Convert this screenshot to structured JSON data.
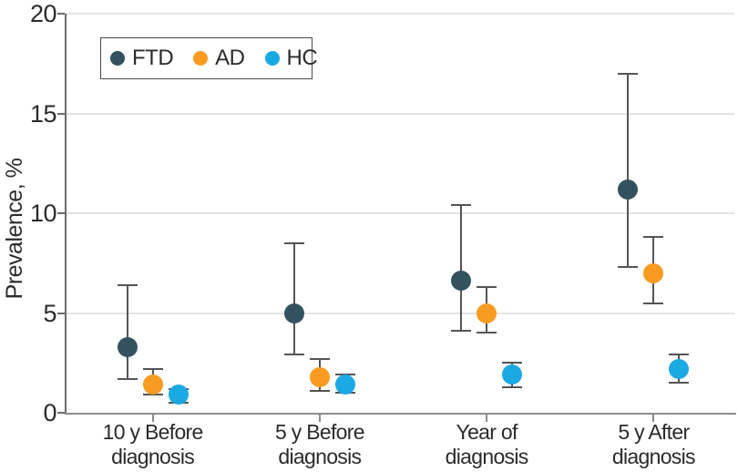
{
  "chart_data": {
    "type": "scatter",
    "title": "",
    "xlabel": "",
    "ylabel": "Prevalence, %",
    "ylim": [
      0,
      20
    ],
    "yticks": [
      0,
      5,
      10,
      15,
      20
    ],
    "grid": true,
    "error_bars": true,
    "legend_position": "top-left",
    "legend_labels": [
      "FTD",
      "AD",
      "HC"
    ],
    "categories": [
      "10 y Before diagnosis",
      "5 y Before diagnosis",
      "Year of diagnosis",
      "5 y After diagnosis"
    ],
    "category_label_lines": [
      [
        "10 y Before",
        "diagnosis"
      ],
      [
        "5 y Before",
        "diagnosis"
      ],
      [
        "Year of",
        "diagnosis"
      ],
      [
        "5 y After",
        "diagnosis"
      ]
    ],
    "series": [
      {
        "name": "FTD",
        "color": "#335260",
        "values": [
          3.3,
          5.0,
          6.6,
          11.2
        ],
        "ci_low": [
          1.7,
          2.9,
          4.1,
          7.3
        ],
        "ci_high": [
          6.4,
          8.5,
          10.4,
          17.0
        ]
      },
      {
        "name": "AD",
        "color": "#f89b20",
        "values": [
          1.4,
          1.8,
          5.0,
          7.0
        ],
        "ci_low": [
          0.9,
          1.1,
          4.0,
          5.5
        ],
        "ci_high": [
          2.2,
          2.7,
          6.3,
          8.8
        ]
      },
      {
        "name": "HC",
        "color": "#1ba9e4",
        "values": [
          0.9,
          1.4,
          1.9,
          2.2
        ],
        "ci_low": [
          0.5,
          1.0,
          1.3,
          1.5
        ],
        "ci_high": [
          1.2,
          1.9,
          2.5,
          2.9
        ]
      }
    ]
  },
  "style": {
    "grid_color": "#e4e4e4",
    "x_axis_color": "#8c8c8c",
    "y_axis_color": "#6b6b6b",
    "error_bar_color": "#555555",
    "text_color": "#2b2b2b",
    "background": "#ffffff"
  }
}
